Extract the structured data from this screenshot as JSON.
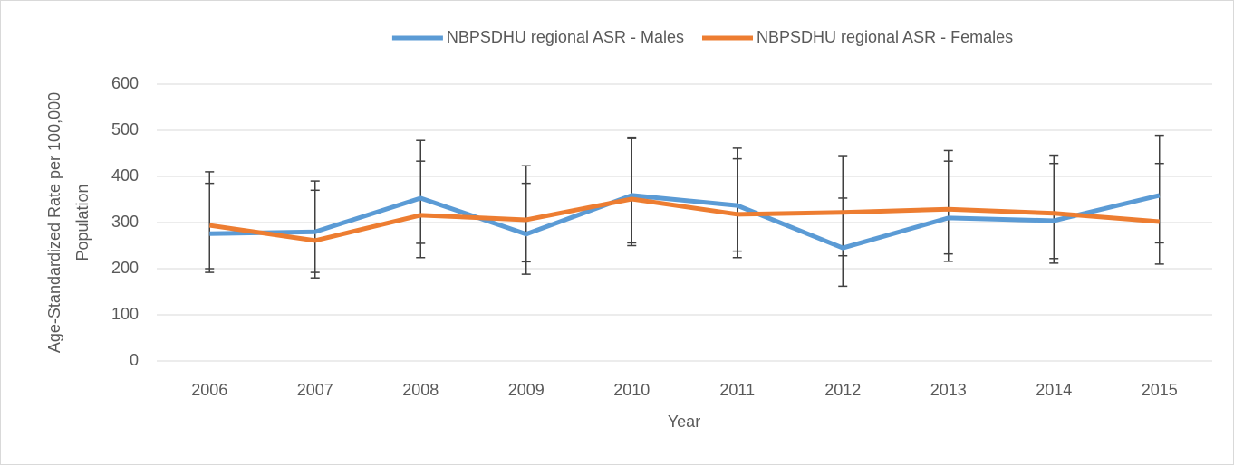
{
  "chart_data": {
    "type": "line",
    "x_label": "Year",
    "y_label": [
      "Age-Standardized Rate per 100,000",
      "Population"
    ],
    "categories": [
      "2006",
      "2007",
      "2008",
      "2009",
      "2010",
      "2011",
      "2012",
      "2013",
      "2014",
      "2015"
    ],
    "series": [
      {
        "name": "NBPSDHU regional ASR - Males",
        "color": "#5b9bd5",
        "values": [
          276,
          280,
          353,
          275,
          359,
          337,
          245,
          310,
          304,
          359
        ],
        "lower": [
          192,
          180,
          224,
          188,
          250,
          224,
          162,
          216,
          212,
          256
        ],
        "upper": [
          410,
          390,
          478,
          423,
          485,
          461,
          353,
          456,
          446,
          489
        ]
      },
      {
        "name": "NBPSDHU regional ASR - Females",
        "color": "#ed7d31",
        "values": [
          294,
          261,
          316,
          306,
          351,
          318,
          322,
          329,
          320,
          302
        ],
        "lower": [
          200,
          192,
          255,
          215,
          256,
          238,
          228,
          232,
          222,
          210
        ],
        "upper": [
          385,
          370,
          433,
          385,
          482,
          438,
          445,
          433,
          428,
          428
        ]
      }
    ],
    "ylim": [
      0,
      600
    ],
    "yticks": [
      0,
      100,
      200,
      300,
      400,
      500,
      600
    ],
    "grid": true,
    "legend": "top"
  }
}
